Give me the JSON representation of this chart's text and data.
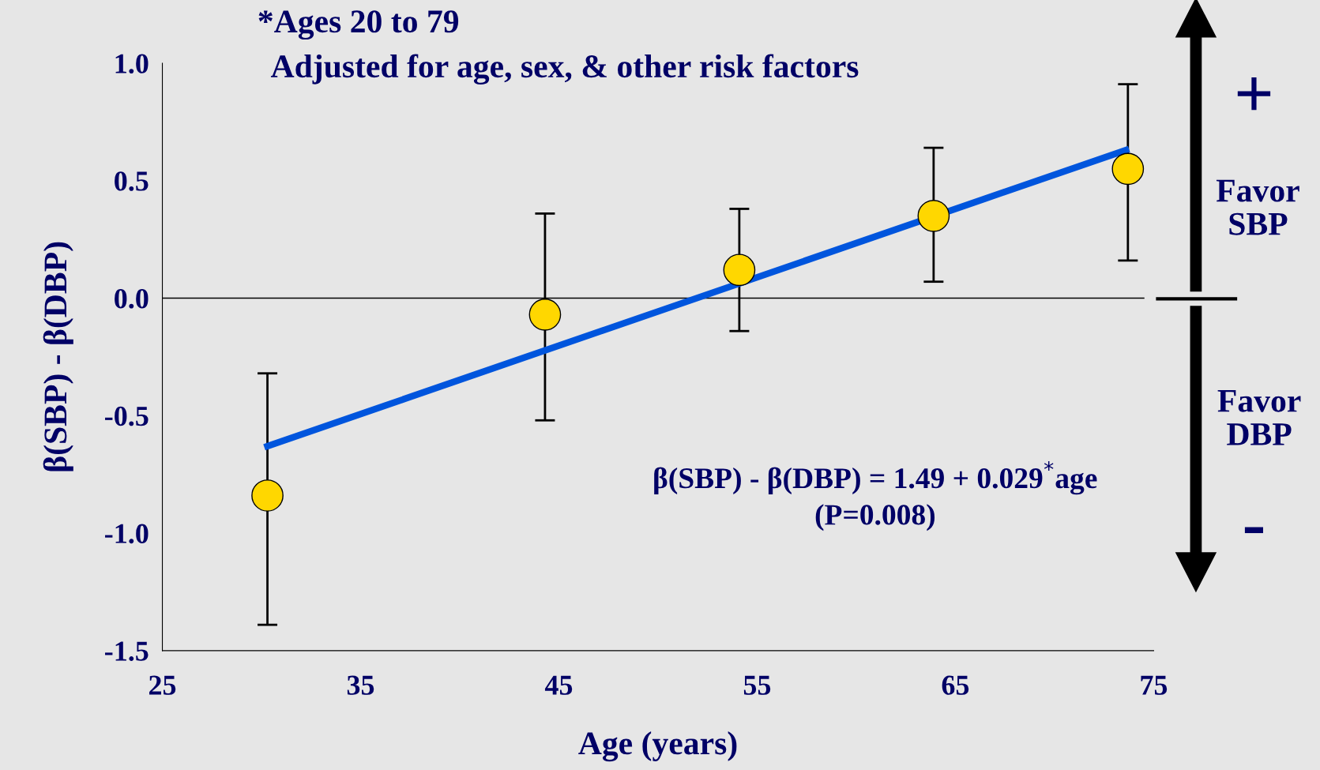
{
  "chart_data": {
    "type": "scatter",
    "title": "*Ages 20 to 79",
    "subtitle": "Adjusted for age, sex, & other risk factors",
    "xlabel": "Age (years)",
    "ylabel": "β(SBP) - β(DBP)",
    "series": [
      {
        "color": "#ffd700",
        "marker": "circle",
        "x": [
          30.3,
          44.3,
          54.1,
          63.9,
          73.7
        ],
        "values": [
          -0.84,
          -0.07,
          0.12,
          0.35,
          0.55
        ],
        "errors": [
          [
            -1.39,
            -0.32
          ],
          [
            -0.52,
            0.36
          ],
          [
            -0.14,
            0.38
          ],
          [
            0.07,
            0.64
          ],
          [
            0.16,
            0.91
          ]
        ]
      },
      {
        "type": "line",
        "marker": "none",
        "color": "#0055dd",
        "x": [
          30.3,
          73.6
        ],
        "values": [
          -0.63,
          0.63
        ]
      }
    ],
    "xlim": [
      25,
      75
    ],
    "ylim": [
      -1.5,
      1.0
    ],
    "xticks": [
      25,
      35,
      45,
      55,
      65,
      75
    ],
    "yticks": [
      {
        "value": 1.0,
        "label": "1.0"
      },
      {
        "value": 0.5,
        "label": "0.5"
      },
      {
        "value": 0,
        "label": "0.0"
      },
      {
        "value": -0.5,
        "label": "-0.5"
      },
      {
        "value": -1.0,
        "label": "-1.0"
      },
      {
        "value": -1.5,
        "label": "-1.5"
      }
    ],
    "ref_lines": [
      {
        "axis": "y",
        "value": 0,
        "color": "#000000"
      }
    ],
    "annotations": [
      "β(SBP) - β(DBP) = 1.49 + 0.029$^{*}$age",
      "(P=0.008)",
      "+",
      "Favor\nSBP",
      "Favor\nDBP",
      "-"
    ],
    "grid": false,
    "legend": false
  }
}
